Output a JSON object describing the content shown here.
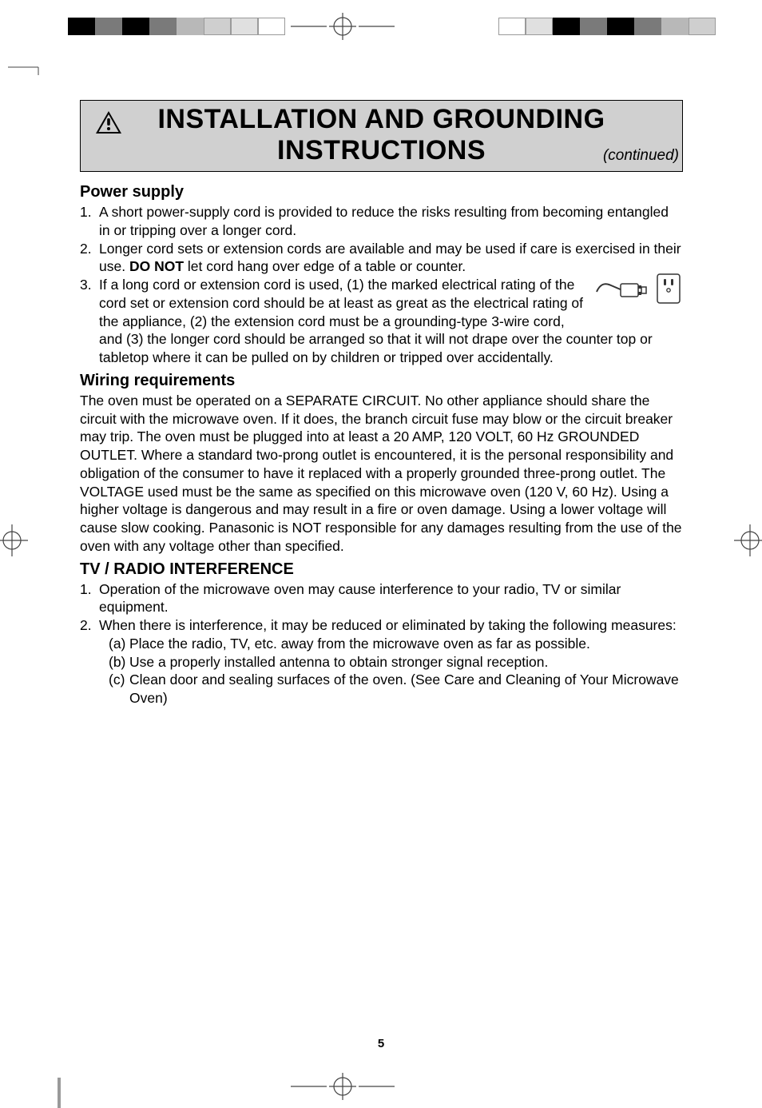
{
  "printer_marks": {
    "swatches_left": [
      "#000000",
      "#7a7a7a",
      "#000000",
      "#7a7a7a",
      "#b8b8b8",
      "#cfcfcf",
      "#e0e0e0",
      "#ffffff"
    ],
    "swatches_right": [
      "#ffffff",
      "#e0e0e0",
      "#000000",
      "#7a7a7a",
      "#000000",
      "#7a7a7a",
      "#b8b8b8",
      "#cfcfcf"
    ],
    "swatch_border": "#9a9a9a",
    "crosshair_stroke": "#333333"
  },
  "header": {
    "title_line1": "INSTALLATION AND GROUNDING",
    "title_line2": "INSTRUCTIONS",
    "continued": "(continued)",
    "background": "#d0d0d0"
  },
  "sections": {
    "power_supply": {
      "heading": "Power supply",
      "items": [
        "A short power-supply cord is provided to reduce the risks resulting from becoming entangled in or tripping over a longer cord.",
        "Longer cord sets or extension cords are available and may be used if care is exercised in their use. DO NOT let cord hang over edge of a table or counter.",
        "If a long cord or extension cord is used, (1) the marked electrical rating of the cord set or extension cord should be at least as great as the electrical rating of the appliance, (2) the extension cord must be a grounding-type 3-wire cord, and (3) the longer cord should be arranged so that it will not drape over the counter top or tabletop where it can be pulled on by children or tripped over accidentally."
      ],
      "bold_phrase": "DO NOT"
    },
    "wiring": {
      "heading": "Wiring requirements",
      "body": "The oven must be operated on a SEPARATE CIRCUIT. No other appliance should share the circuit with the microwave oven. If it does, the branch circuit fuse may blow or the circuit breaker may trip. The oven must be plugged into at least a 20 AMP, 120 VOLT, 60 Hz GROUNDED OUTLET. Where a standard two-prong outlet is encountered, it is the personal responsibility and obligation of the consumer to have it replaced with a properly grounded three-prong outlet. The VOLTAGE used must be the same as specified on this microwave oven (120 V, 60 Hz). Using a higher voltage is dangerous and may result in a fire or oven damage. Using a lower voltage will cause slow cooking. Panasonic is NOT responsible for any damages resulting from the use of the oven with any voltage other than specified."
    },
    "interference": {
      "heading": "TV / RADIO INTERFERENCE",
      "items": [
        "Operation of the microwave oven may cause interference to your radio, TV or similar equipment.",
        "When there is interference, it may be reduced or eliminated by taking the following measures:"
      ],
      "sub_items": [
        {
          "marker": "(a)",
          "text": "Place the radio, TV, etc. away from the microwave oven as far as possible."
        },
        {
          "marker": "(b)",
          "text": "Use a properly installed antenna to obtain stronger signal reception."
        },
        {
          "marker": "(c)",
          "text": "Clean door and sealing surfaces of the oven. (See Care and Cleaning of Your Microwave Oven)"
        }
      ]
    }
  },
  "page_number": "5",
  "typography": {
    "title_fontsize": 34,
    "subheading_fontsize": 20,
    "body_fontsize": 17.5,
    "pagenum_fontsize": 15
  },
  "plug_outlet": {
    "stroke": "#333333",
    "fill": "#ffffff"
  }
}
